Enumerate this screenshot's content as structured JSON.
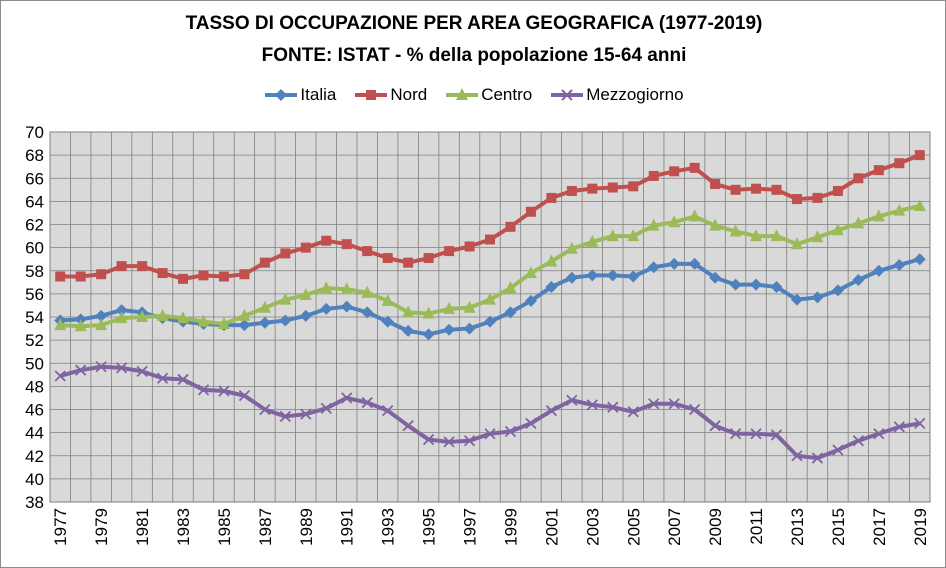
{
  "chart_data": {
    "type": "line",
    "title": "TASSO DI OCCUPAZIONE PER AREA GEOGRAFICA (1977-2019)",
    "subtitle": "FONTE: ISTAT - % della popolazione 15-64 anni",
    "xlabel": "",
    "ylabel": "",
    "ylim": [
      38,
      70
    ],
    "yticks": [
      38,
      40,
      42,
      44,
      46,
      48,
      50,
      52,
      54,
      56,
      58,
      60,
      62,
      64,
      66,
      68,
      70
    ],
    "xlim": [
      1977,
      2019
    ],
    "xtick_labels": [
      "1977",
      "1979",
      "1981",
      "1983",
      "1985",
      "1987",
      "1989",
      "1991",
      "1993",
      "1995",
      "1997",
      "1999",
      "2001",
      "2003",
      "2005",
      "2007",
      "2009",
      "2011",
      "2013",
      "2015",
      "2017",
      "2019"
    ],
    "grid": true,
    "legend_position": "top",
    "x": [
      1977,
      1978,
      1979,
      1980,
      1981,
      1982,
      1983,
      1984,
      1985,
      1986,
      1987,
      1988,
      1989,
      1990,
      1991,
      1992,
      1993,
      1994,
      1995,
      1996,
      1997,
      1998,
      1999,
      2000,
      2001,
      2002,
      2003,
      2004,
      2005,
      2006,
      2007,
      2008,
      2009,
      2010,
      2011,
      2012,
      2013,
      2014,
      2015,
      2016,
      2017,
      2018,
      2019
    ],
    "series": [
      {
        "name": "Italia",
        "color": "#4f81bd",
        "marker": "diamond",
        "values": [
          53.7,
          53.8,
          54.1,
          54.6,
          54.4,
          53.9,
          53.6,
          53.4,
          53.3,
          53.3,
          53.5,
          53.7,
          54.1,
          54.7,
          54.9,
          54.4,
          53.6,
          52.8,
          52.5,
          52.9,
          53.0,
          53.6,
          54.4,
          55.4,
          56.6,
          57.4,
          57.6,
          57.6,
          57.5,
          58.3,
          58.6,
          58.6,
          57.4,
          56.8,
          56.8,
          56.6,
          55.5,
          55.7,
          56.3,
          57.2,
          58.0,
          58.5,
          59.0
        ]
      },
      {
        "name": "Nord",
        "color": "#c0504d",
        "marker": "square",
        "values": [
          57.5,
          57.5,
          57.7,
          58.4,
          58.4,
          57.8,
          57.3,
          57.6,
          57.5,
          57.7,
          58.7,
          59.5,
          60.0,
          60.6,
          60.3,
          59.7,
          59.1,
          58.7,
          59.1,
          59.7,
          60.1,
          60.7,
          61.8,
          63.1,
          64.3,
          64.9,
          65.1,
          65.2,
          65.3,
          66.2,
          66.6,
          66.9,
          65.5,
          65.0,
          65.1,
          65.0,
          64.2,
          64.3,
          64.9,
          66.0,
          66.7,
          67.3,
          68.0
        ]
      },
      {
        "name": "Centro",
        "color": "#9bbb59",
        "marker": "triangle",
        "values": [
          53.3,
          53.2,
          53.3,
          53.9,
          54.0,
          54.1,
          53.9,
          53.6,
          53.4,
          54.1,
          54.8,
          55.5,
          55.9,
          56.5,
          56.4,
          56.1,
          55.4,
          54.4,
          54.3,
          54.7,
          54.8,
          55.5,
          56.5,
          57.8,
          58.8,
          59.9,
          60.5,
          61.0,
          61.0,
          61.9,
          62.2,
          62.7,
          61.9,
          61.4,
          61.0,
          61.0,
          60.3,
          60.9,
          61.5,
          62.1,
          62.7,
          63.2,
          63.6
        ]
      },
      {
        "name": "Mezzogiorno",
        "color": "#8064a2",
        "marker": "cross",
        "values": [
          48.9,
          49.4,
          49.7,
          49.6,
          49.3,
          48.7,
          48.6,
          47.7,
          47.6,
          47.2,
          46.0,
          45.4,
          45.6,
          46.1,
          47.0,
          46.6,
          45.9,
          44.6,
          43.4,
          43.2,
          43.3,
          43.9,
          44.1,
          44.8,
          45.9,
          46.8,
          46.4,
          46.2,
          45.8,
          46.5,
          46.5,
          46.0,
          44.6,
          43.9,
          43.9,
          43.8,
          42.0,
          41.8,
          42.5,
          43.3,
          43.9,
          44.5,
          44.8
        ]
      }
    ]
  }
}
